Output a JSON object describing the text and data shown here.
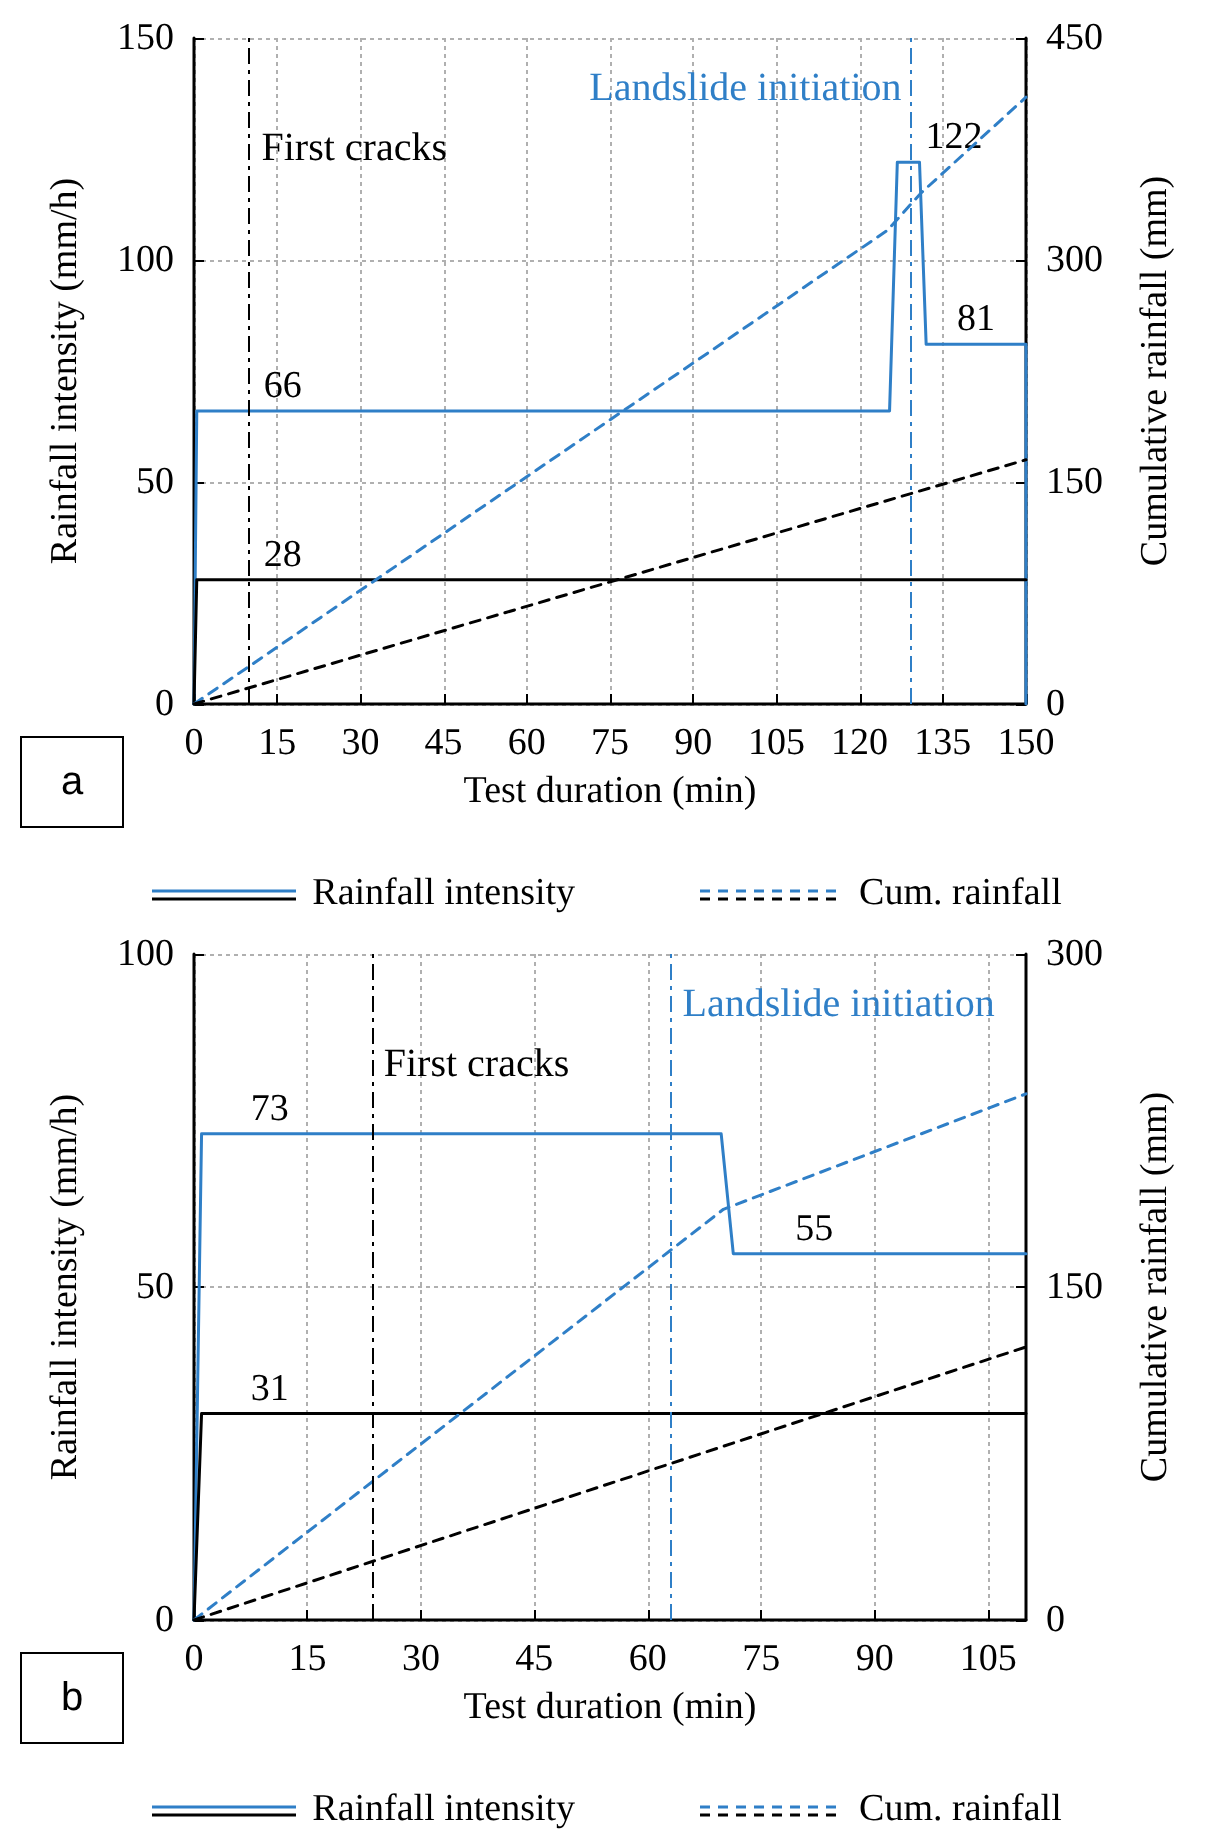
{
  "chart_data": [
    {
      "type": "line",
      "xlabel": "Test duration (min)",
      "ylabel": "Rainfall intensity (mm/h)",
      "y2label": "Cumulative rainfall (mm)",
      "xlim": [
        0,
        150
      ],
      "xticks": [
        0,
        15,
        30,
        45,
        60,
        75,
        90,
        105,
        120,
        135,
        150
      ],
      "ylim": [
        0,
        150
      ],
      "yticks": [
        0,
        50,
        100,
        150
      ],
      "y2lim": [
        0,
        450
      ],
      "y2ticks": [
        0,
        150,
        300,
        450
      ],
      "grid": true,
      "legend": "bottom",
      "marker": "none",
      "series": [
        {
          "name": "Rainfall intensity",
          "color": "#2f7fc7",
          "line_style": "solid",
          "x": [
            0,
            0.5,
            125.4,
            126.8,
            130.8,
            132,
            150,
            150
          ],
          "values": [
            0,
            66,
            66,
            122,
            122,
            81,
            81,
            0
          ]
        },
        {
          "color": "#000000",
          "line_style": "solid",
          "x": [
            0,
            0.5,
            150
          ],
          "values": [
            0,
            28,
            28
          ]
        },
        {
          "name": "Cum. rainfall",
          "color": "#2f7fc7",
          "line_style": "dashed",
          "axis": "y2",
          "x": [
            0,
            125,
            131,
            150
          ],
          "values": [
            0,
            320,
            345,
            410
          ]
        },
        {
          "color": "#000000",
          "line_style": "dashed",
          "axis": "y2",
          "x": [
            0,
            150
          ],
          "values": [
            0,
            165
          ]
        }
      ],
      "ref_lines": [
        {
          "axis": "x",
          "value": 10,
          "label": "First cracks",
          "color": "#000000",
          "line_style": "dashdot"
        },
        {
          "axis": "x",
          "value": 129,
          "label": "Landslide initiation",
          "color": "#2f7fc7",
          "line_style": "dashdot"
        }
      ],
      "annotations": [
        {
          "text": "66",
          "x": 16,
          "y": 66
        },
        {
          "text": "28",
          "x": 16,
          "y": 28
        },
        {
          "text": "122",
          "x": 137,
          "y": 122
        },
        {
          "text": "81",
          "x": 141,
          "y": 81
        },
        "a"
      ]
    },
    {
      "type": "line",
      "xlabel": "Test duration (min)",
      "ylabel": "Rainfall intensity (mm/h)",
      "y2label": "Cumulative rainfall (mm)",
      "xlim": [
        0,
        110
      ],
      "xticks": [
        0,
        15,
        30,
        45,
        60,
        75,
        90,
        105
      ],
      "ylim": [
        0,
        100
      ],
      "yticks": [
        0,
        50,
        100
      ],
      "y2lim": [
        0,
        300
      ],
      "y2ticks": [
        0,
        150,
        300
      ],
      "grid": true,
      "legend": "bottom",
      "marker": "none",
      "series": [
        {
          "name": "Rainfall intensity",
          "color": "#2f7fc7",
          "line_style": "solid",
          "x": [
            0,
            1,
            69.7,
            71.3,
            110
          ],
          "values": [
            0,
            73,
            73,
            55,
            55
          ]
        },
        {
          "color": "#000000",
          "line_style": "solid",
          "x": [
            0,
            1,
            110
          ],
          "values": [
            0,
            31,
            31
          ]
        },
        {
          "name": "Cum. rainfall",
          "color": "#2f7fc7",
          "line_style": "dashed",
          "axis": "y2",
          "x": [
            0,
            70,
            110
          ],
          "values": [
            0,
            185,
            237
          ]
        },
        {
          "color": "#000000",
          "line_style": "dashed",
          "axis": "y2",
          "x": [
            0,
            110
          ],
          "values": [
            0,
            123
          ]
        }
      ],
      "ref_lines": [
        {
          "axis": "x",
          "value": 23.5,
          "label": "First cracks",
          "color": "#000000",
          "line_style": "dashdot"
        },
        {
          "axis": "x",
          "value": 63,
          "label": "Landslide initiation",
          "color": "#2f7fc7",
          "line_style": "dashdot"
        }
      ],
      "annotations": [
        {
          "text": "73",
          "x": 10,
          "y": 73
        },
        {
          "text": "31",
          "x": 10,
          "y": 31
        },
        {
          "text": "55",
          "x": 82,
          "y": 55
        },
        "b"
      ]
    }
  ]
}
